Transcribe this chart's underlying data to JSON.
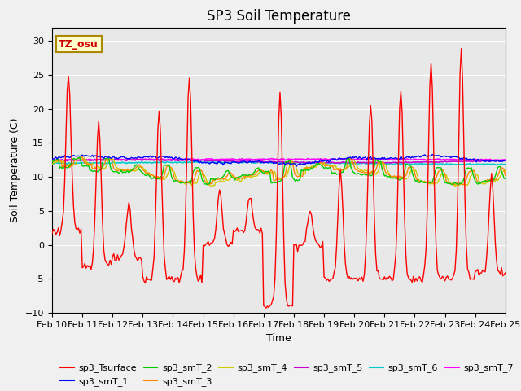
{
  "title": "SP3 Soil Temperature",
  "ylabel": "Soil Temperature (C)",
  "xlabel": "Time",
  "watermark": "TZ_osu",
  "ylim": [
    -10,
    32
  ],
  "yticks": [
    -10,
    -5,
    0,
    5,
    10,
    15,
    20,
    25,
    30
  ],
  "xlim": [
    0,
    360
  ],
  "x_tick_labels": [
    "Feb 10",
    "Feb 11",
    "Feb 12",
    "Feb 13",
    "Feb 14",
    "Feb 15",
    "Feb 16",
    "Feb 17",
    "Feb 18",
    "Feb 19",
    "Feb 20",
    "Feb 21",
    "Feb 22",
    "Feb 23",
    "Feb 24",
    "Feb 25"
  ],
  "x_tick_positions": [
    0,
    24,
    48,
    72,
    96,
    120,
    144,
    168,
    192,
    216,
    240,
    264,
    288,
    312,
    336,
    360
  ],
  "series_colors": {
    "sp3_Tsurface": "#ff0000",
    "sp3_smT_1": "#0000ff",
    "sp3_smT_2": "#00cc00",
    "sp3_smT_3": "#ff8800",
    "sp3_smT_4": "#cccc00",
    "sp3_smT_5": "#cc00cc",
    "sp3_smT_6": "#00cccc",
    "sp3_smT_7": "#ff00ff"
  },
  "background_color": "#e8e8e8",
  "grid_color": "#ffffff",
  "title_fontsize": 12,
  "label_fontsize": 9,
  "tick_fontsize": 8,
  "legend_fontsize": 8,
  "fig_facecolor": "#f0f0f0"
}
